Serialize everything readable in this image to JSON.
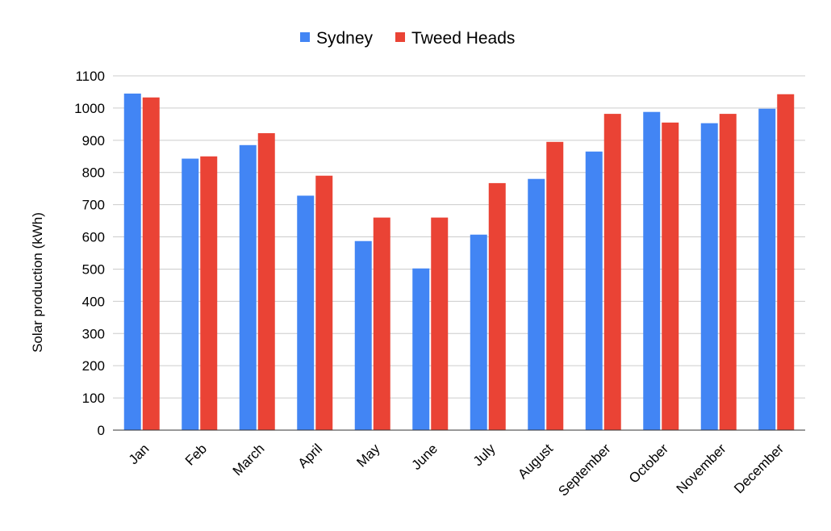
{
  "chart_data": {
    "type": "bar",
    "title": "",
    "xlabel": "",
    "ylabel": "Solar production (kWh)",
    "ylim": [
      0,
      1100
    ],
    "yticks": [
      0,
      100,
      200,
      300,
      400,
      500,
      600,
      700,
      800,
      900,
      1000,
      1100
    ],
    "grid": true,
    "legend_position": "top",
    "categories": [
      "Jan",
      "Feb",
      "March",
      "April",
      "May",
      "June",
      "July",
      "August",
      "September",
      "October",
      "November",
      "December"
    ],
    "series": [
      {
        "name": "Sydney",
        "color": "#4285f4",
        "values": [
          1045,
          843,
          885,
          728,
          587,
          502,
          607,
          780,
          865,
          988,
          953,
          998
        ]
      },
      {
        "name": "Tweed Heads",
        "color": "#ea4335",
        "values": [
          1033,
          850,
          922,
          790,
          660,
          660,
          767,
          895,
          982,
          955,
          982,
          1043
        ]
      }
    ]
  }
}
